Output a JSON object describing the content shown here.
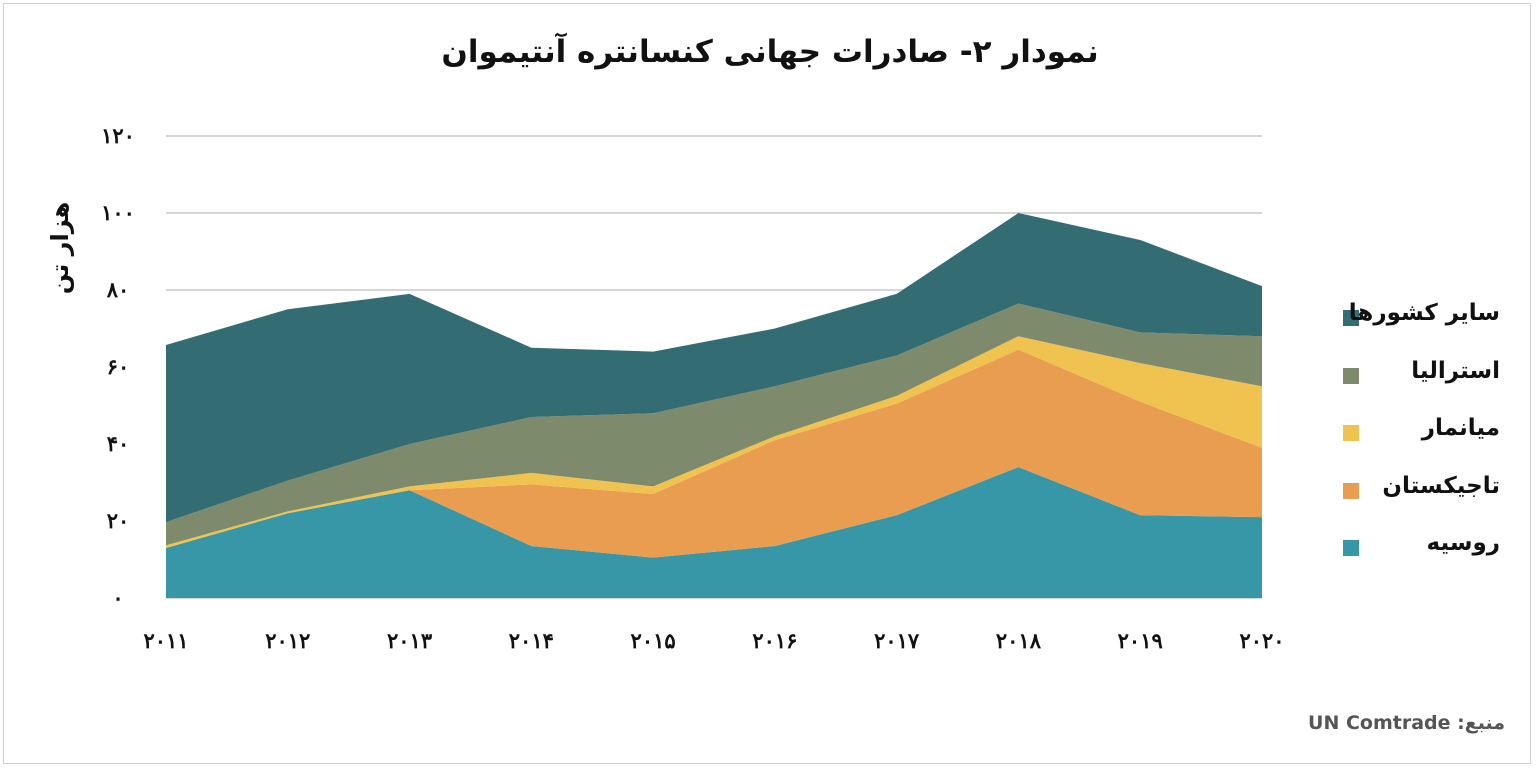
{
  "title": "نمودار ۲- صادرات جهانی کنسانتره آنتیموان",
  "source_label": "منبع:",
  "source_value": "UN Comtrade",
  "colors": {
    "سایر کشورها": "#336c73",
    "استرالیا": "#7d8a6c",
    "میانمار": "#f0c24f",
    "تاجیکستان": "#e99d50",
    "روسیه": "#3797a6",
    "grid": "#d6d6d6"
  },
  "chart_data": {
    "type": "area",
    "stacked": true,
    "title": "نمودار ۲- صادرات جهانی کنسانتره آنتیموان",
    "xlabel": "",
    "ylabel": "هزار تن",
    "x": [
      "2011",
      "2012",
      "2013",
      "2014",
      "2015",
      "2016",
      "2017",
      "2018",
      "2019",
      "2020"
    ],
    "x_tick_labels": [
      "۲۰۱۱",
      "۲۰۱۲",
      "۲۰۱۳",
      "۲۰۱۴",
      "۲۰۱۵",
      "۲۰۱۶",
      "۲۰۱۷",
      "۲۰۱۸",
      "۲۰۱۹",
      "۲۰۲۰"
    ],
    "ylim": [
      0,
      120
    ],
    "y_ticks": [
      0,
      20,
      40,
      60,
      80,
      100,
      120
    ],
    "y_tick_labels": [
      "۰",
      "۲۰",
      "۴۰",
      "۶۰",
      "۸۰",
      "۱۰۰",
      "۱۲۰"
    ],
    "grid": true,
    "legend_position": "right",
    "series": [
      {
        "name": "روسیه",
        "values": [
          13,
          22,
          28,
          13.5,
          10.5,
          13.5,
          21.5,
          34,
          21.5,
          21
        ]
      },
      {
        "name": "تاجیکستان",
        "values": [
          0,
          0,
          0,
          16,
          16.5,
          27.5,
          29,
          30.5,
          29.5,
          18
        ]
      },
      {
        "name": "میانمار",
        "values": [
          0.7,
          0.5,
          1,
          3,
          2,
          1,
          2,
          3.5,
          10,
          16
        ]
      },
      {
        "name": "استرالیا",
        "values": [
          6,
          8,
          11,
          14.5,
          19,
          13,
          10.5,
          8.5,
          8,
          13
        ]
      },
      {
        "name": "سایر کشورها",
        "values": [
          46,
          44.5,
          39,
          18,
          16,
          15,
          16,
          23.5,
          24,
          13
        ]
      }
    ],
    "legend": [
      "سایر کشورها",
      "استرالیا",
      "میانمار",
      "تاجیکستان",
      "روسیه"
    ]
  }
}
